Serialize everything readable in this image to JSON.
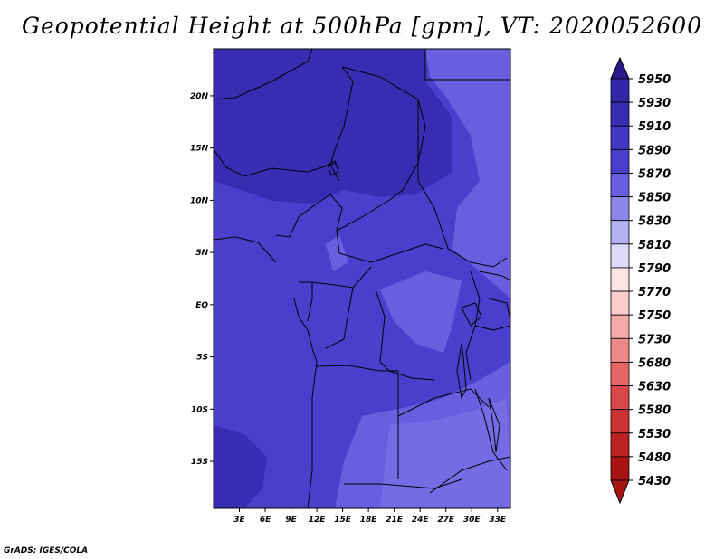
{
  "title": "Geopotential Height at 500hPa [gpm], VT: 2020052600",
  "credit": "GrADS: IGES/COLA",
  "colors": {
    "map_base": "#4a3fcc",
    "darker_region": "#3a2cb2",
    "lighter_region": "#6a5de0",
    "lightest_region": "#7e74e6",
    "border": "#000000"
  },
  "map": {
    "lon_range": [
      0,
      34.5
    ],
    "lat_range": [
      -19.5,
      24.5
    ],
    "x_ticks": [
      {
        "value": 3,
        "label": "3E"
      },
      {
        "value": 6,
        "label": "6E"
      },
      {
        "value": 9,
        "label": "9E"
      },
      {
        "value": 12,
        "label": "12E"
      },
      {
        "value": 15,
        "label": "15E"
      },
      {
        "value": 18,
        "label": "18E"
      },
      {
        "value": 21,
        "label": "21E"
      },
      {
        "value": 24,
        "label": "24E"
      },
      {
        "value": 27,
        "label": "27E"
      },
      {
        "value": 30,
        "label": "30E"
      },
      {
        "value": 33,
        "label": "33E"
      }
    ],
    "y_ticks": [
      {
        "value": 20,
        "label": "20N"
      },
      {
        "value": 15,
        "label": "15N"
      },
      {
        "value": 10,
        "label": "10N"
      },
      {
        "value": 5,
        "label": "5N"
      },
      {
        "value": 0,
        "label": "EQ"
      },
      {
        "value": -5,
        "label": "5S"
      },
      {
        "value": -10,
        "label": "10S"
      },
      {
        "value": -15,
        "label": "15S"
      }
    ]
  },
  "colorbar": {
    "levels": [
      {
        "label": "5950",
        "color": "#2a1a8e"
      },
      {
        "label": "5930",
        "color": "#3325a6"
      },
      {
        "label": "5910",
        "color": "#3a2cb2"
      },
      {
        "label": "5890",
        "color": "#4336c2"
      },
      {
        "label": "5870",
        "color": "#4a3fcc"
      },
      {
        "label": "5850",
        "color": "#6a5de0"
      },
      {
        "label": "5830",
        "color": "#8d86ea"
      },
      {
        "label": "5810",
        "color": "#b4b0f2"
      },
      {
        "label": "5790",
        "color": "#dcdaf8"
      },
      {
        "label": "5770",
        "color": "#fde4e4"
      },
      {
        "label": "5750",
        "color": "#fbcccc"
      },
      {
        "label": "5730",
        "color": "#f5aaaa"
      },
      {
        "label": "5680",
        "color": "#ee8888"
      },
      {
        "label": "5630",
        "color": "#e46666"
      },
      {
        "label": "5580",
        "color": "#d94848"
      },
      {
        "label": "5530",
        "color": "#cc3232"
      },
      {
        "label": "5480",
        "color": "#bb2222"
      },
      {
        "label": "5430",
        "color": "#a81414"
      }
    ],
    "top_arrow_color": "#2a1a8e",
    "bottom_arrow_color": "#a81414"
  }
}
